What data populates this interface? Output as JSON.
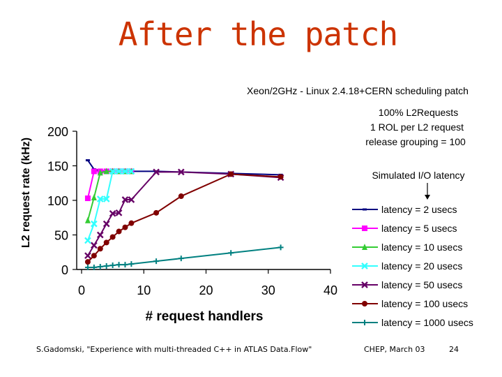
{
  "slide": {
    "title": "After the patch",
    "title_color": "#cc3300",
    "footer_left": "S.Gadomski, \"Experience with multi-threaded C++ in ATLAS Data.Flow\"",
    "footer_date": "CHEP, March 03",
    "footer_page": "24"
  },
  "chart_data": {
    "type": "line",
    "title": "Xeon/2GHz - Linux 2.4.18+CERN scheduling patch",
    "xlabel": "# request handlers",
    "ylabel": "L2 request rate (kHz)",
    "xlim": [
      0,
      40
    ],
    "ylim": [
      0,
      200
    ],
    "xticks": [
      0,
      10,
      20,
      30,
      40
    ],
    "yticks": [
      0,
      50,
      100,
      150,
      200
    ],
    "grid": false,
    "legend_position": "right",
    "annotations": [
      "100% L2Requests",
      "1 ROL per L2 request",
      "release grouping = 100",
      "Simulated I/O latency"
    ],
    "series": [
      {
        "name": "latency = 2 usecs",
        "color": "#000080",
        "marker": "dash",
        "x": [
          1,
          2,
          3,
          4,
          5,
          6,
          7,
          8,
          12,
          16,
          24,
          32
        ],
        "y": [
          158,
          145,
          143,
          142,
          142,
          142,
          142,
          142,
          142,
          141,
          139,
          137
        ]
      },
      {
        "name": "latency = 5 usecs",
        "color": "#ff00ff",
        "marker": "square",
        "x": [
          1,
          2,
          3,
          4,
          5,
          6,
          7,
          8
        ],
        "y": [
          103,
          142,
          142,
          142,
          142,
          142,
          142,
          142
        ]
      },
      {
        "name": "latency = 10 usecs",
        "color": "#33cc33",
        "marker": "triangle",
        "x": [
          1,
          2,
          3,
          4,
          5,
          6,
          7,
          8
        ],
        "y": [
          71,
          104,
          140,
          142,
          142,
          142,
          142,
          142
        ]
      },
      {
        "name": "latency = 20 usecs",
        "color": "#33ffff",
        "marker": "x",
        "x": [
          1,
          2,
          3,
          4,
          5,
          6,
          7,
          8
        ],
        "y": [
          42,
          66,
          102,
          102,
          142,
          142,
          142,
          142
        ]
      },
      {
        "name": "latency = 50 usecs",
        "color": "#660066",
        "marker": "x",
        "x": [
          1,
          2,
          3,
          4,
          5,
          6,
          7,
          8,
          12,
          16,
          24,
          32
        ],
        "y": [
          20,
          35,
          50,
          66,
          81,
          82,
          101,
          101,
          141,
          141,
          138,
          133
        ]
      },
      {
        "name": "latency = 100 usecs",
        "color": "#800000",
        "marker": "circle",
        "x": [
          1,
          2,
          3,
          4,
          5,
          6,
          7,
          8,
          12,
          16,
          24,
          32
        ],
        "y": [
          11,
          20,
          30,
          39,
          47,
          55,
          61,
          67,
          82,
          106,
          138,
          134
        ]
      },
      {
        "name": "latency = 1000 usecs",
        "color": "#008080",
        "marker": "plus",
        "x": [
          1,
          2,
          3,
          4,
          5,
          6,
          7,
          8,
          12,
          16,
          24,
          32
        ],
        "y": [
          3,
          3,
          4,
          5,
          6,
          7,
          7,
          8,
          12,
          16,
          24,
          32
        ]
      }
    ]
  }
}
